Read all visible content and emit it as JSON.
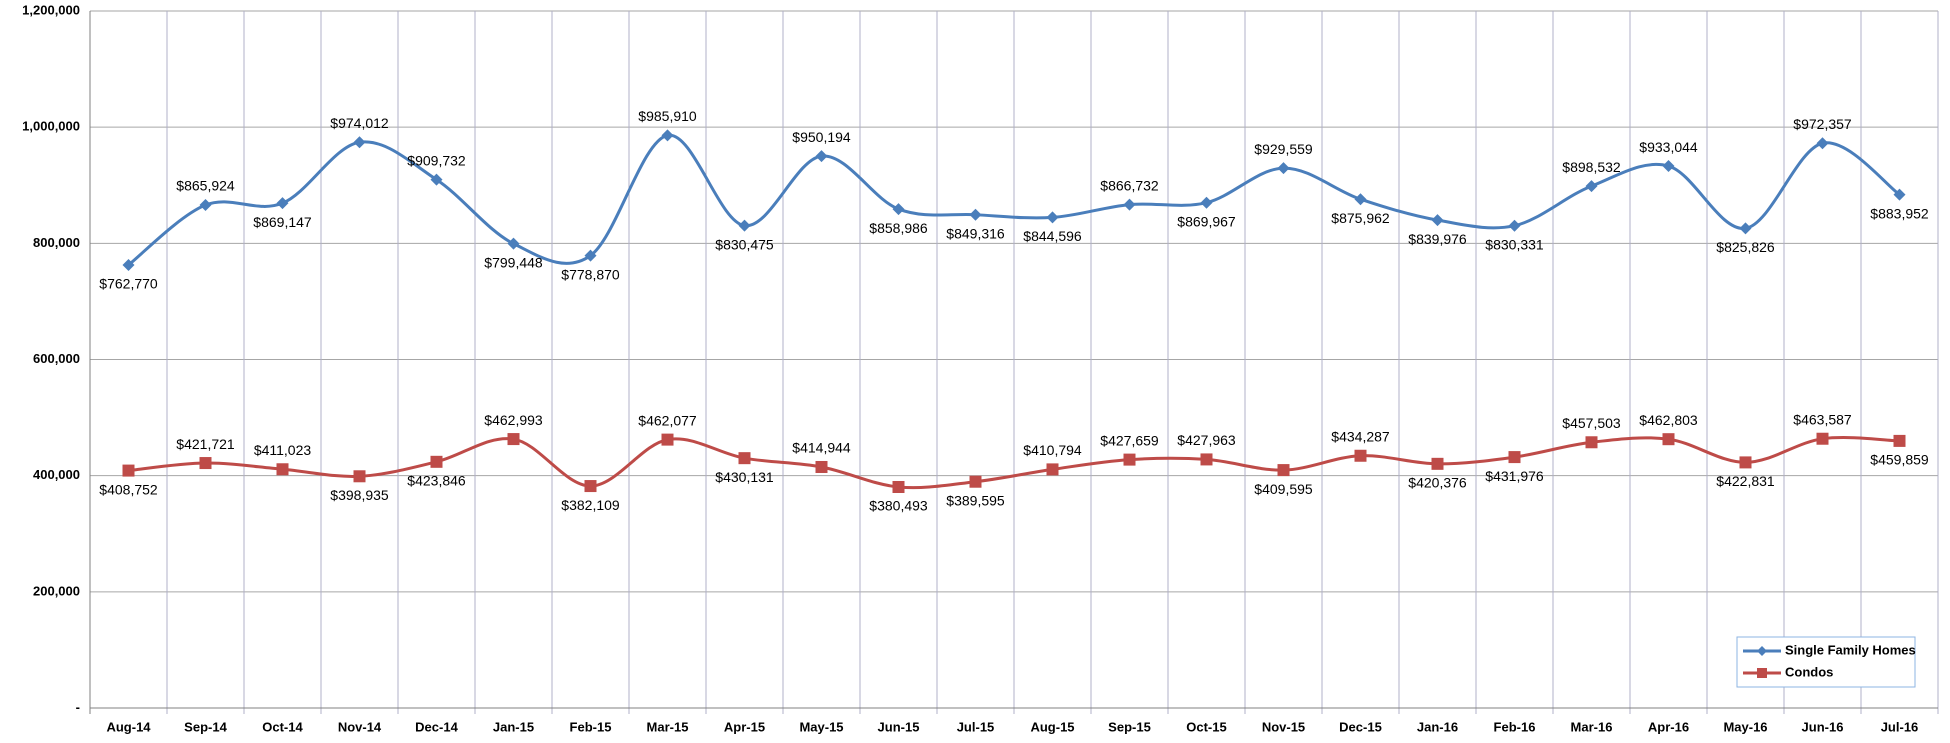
{
  "chart_data": {
    "type": "line",
    "categories": [
      "Aug-14",
      "Sep-14",
      "Oct-14",
      "Nov-14",
      "Dec-14",
      "Jan-15",
      "Feb-15",
      "Mar-15",
      "Apr-15",
      "May-15",
      "Jun-15",
      "Jul-15",
      "Aug-15",
      "Sep-15",
      "Oct-15",
      "Nov-15",
      "Dec-15",
      "Jan-16",
      "Feb-16",
      "Mar-16",
      "Apr-16",
      "May-16",
      "Jun-16",
      "Jul-16"
    ],
    "series": [
      {
        "name": "Single Family Homes",
        "color": "#4a7ebb",
        "marker": "diamond",
        "values": [
          762770,
          865924,
          869147,
          974012,
          909732,
          799448,
          778870,
          985910,
          830475,
          950194,
          858986,
          849316,
          844596,
          866732,
          869967,
          929559,
          875962,
          839976,
          830331,
          898532,
          933044,
          825826,
          972357,
          883952
        ],
        "value_labels": [
          "$762,770",
          "$865,924",
          "$869,147",
          "$974,012",
          "$909,732",
          "$799,448",
          "$778,870",
          "$985,910",
          "$830,475",
          "$950,194",
          "$858,986",
          "$849,316",
          "$844,596",
          "$866,732",
          "$869,967",
          "$929,559",
          "$875,962",
          "$839,976",
          "$830,331",
          "$898,532",
          "$933,044",
          "$825,826",
          "$972,357",
          "$883,952"
        ]
      },
      {
        "name": "Condos",
        "color": "#be4b48",
        "marker": "square",
        "values": [
          408752,
          421721,
          411023,
          398935,
          423846,
          462993,
          382109,
          462077,
          430131,
          414944,
          380493,
          389595,
          410794,
          427659,
          427963,
          409595,
          434287,
          420376,
          431976,
          457503,
          462803,
          422831,
          463587,
          459859
        ],
        "value_labels": [
          "$408,752",
          "$421,721",
          "$411,023",
          "$398,935",
          "$423,846",
          "$462,993",
          "$382,109",
          "$462,077",
          "$430,131",
          "$414,944",
          "$380,493",
          "$389,595",
          "$410,794",
          "$427,659",
          "$427,963",
          "$409,595",
          "$434,287",
          "$420,376",
          "$431,976",
          "$457,503",
          "$462,803",
          "$422,831",
          "$463,587",
          "$459,859"
        ]
      }
    ],
    "ylim": [
      0,
      1200000
    ],
    "yticks": [
      {
        "value": 0,
        "label": "-"
      },
      {
        "value": 200000,
        "label": "200,000"
      },
      {
        "value": 400000,
        "label": "400,000"
      },
      {
        "value": 600000,
        "label": "600,000"
      },
      {
        "value": 800000,
        "label": "800,000"
      },
      {
        "value": 1000000,
        "label": "1,000,000"
      },
      {
        "value": 1200000,
        "label": "1,200,000"
      }
    ],
    "grid": true,
    "legend": "lower right",
    "smooth": true
  }
}
